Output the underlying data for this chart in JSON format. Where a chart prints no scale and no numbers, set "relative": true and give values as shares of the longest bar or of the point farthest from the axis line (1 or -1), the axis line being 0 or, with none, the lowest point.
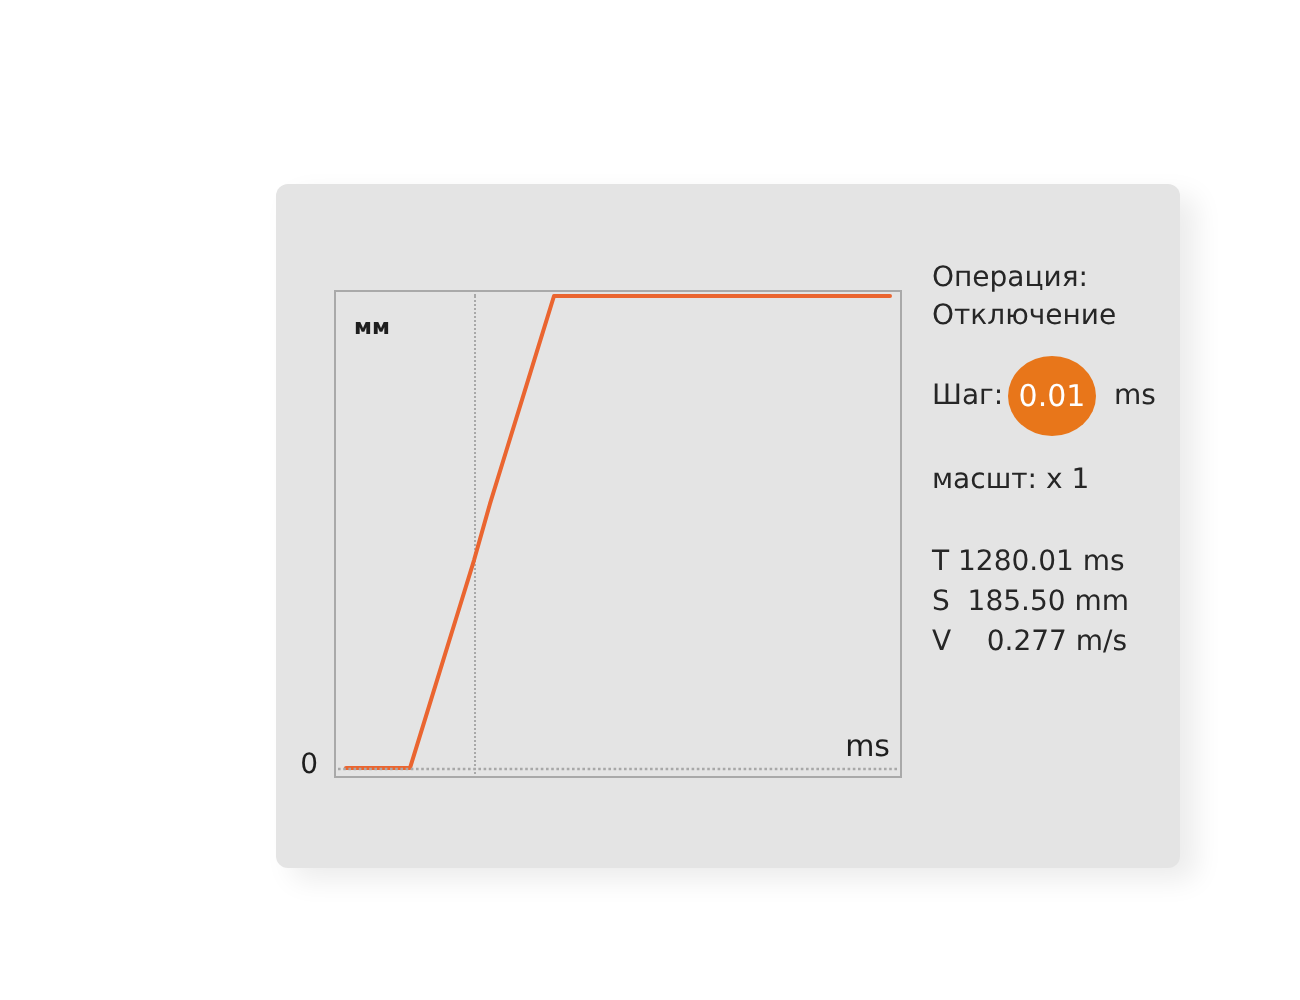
{
  "chart_data": {
    "type": "line",
    "relative": true,
    "xlabel": "ms",
    "ylabel": "мм",
    "categories": [
      null,
      null,
      null,
      null,
      null,
      null,
      null,
      null,
      null,
      null,
      null,
      null,
      null,
      null,
      null,
      null,
      null,
      null,
      null,
      null,
      null,
      null,
      null,
      null,
      null,
      null,
      null,
      null,
      null,
      null,
      null,
      null,
      null,
      null,
      null
    ],
    "series": [
      {
        "color": "#ea6530",
        "values": [
          0,
          0,
          0,
          0,
          0,
          0.11,
          0.22,
          0.33,
          0.44,
          0.56,
          0.67,
          0.78,
          0.89,
          1,
          1,
          1,
          1,
          1,
          1,
          1,
          1,
          1,
          1,
          1,
          1,
          1,
          1,
          1,
          1,
          1,
          1,
          1,
          1,
          1,
          1
        ]
      }
    ],
    "marker": "none",
    "line_style": "solid",
    "ref_lines": [
      {
        "axis": "y",
        "value": 0,
        "line_style": "dotted",
        "color": "#a8a8a8"
      }
    ],
    "annotations": [
      "0",
      "Операция:",
      "Отключение",
      "Шаг: 0.01 ms",
      "масшт: x 1",
      "T 1280.01 ms",
      "S  185.50 mm",
      "V    0.277 m/s"
    ]
  }
}
